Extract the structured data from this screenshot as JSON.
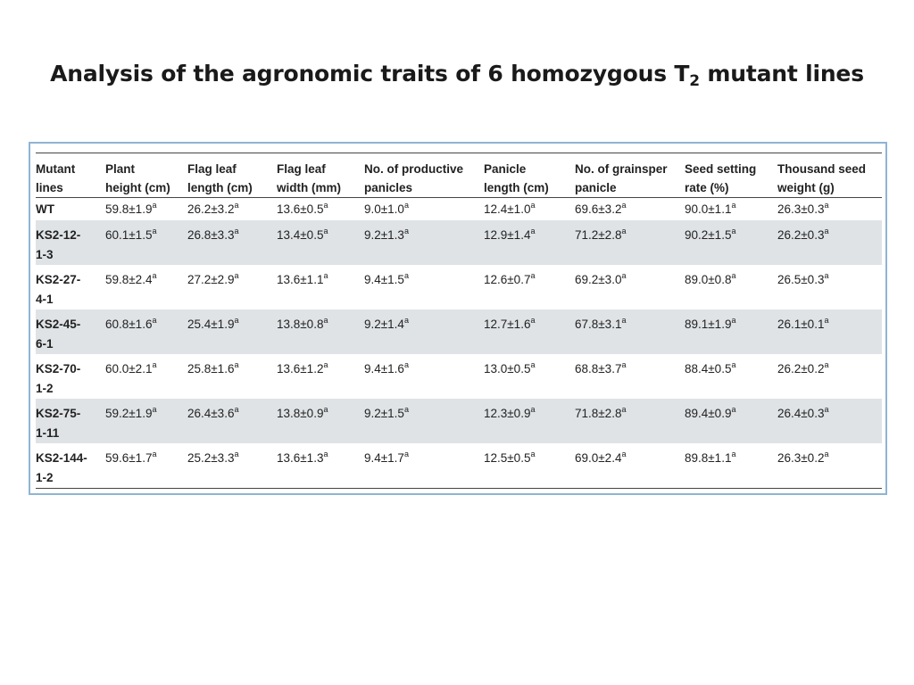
{
  "title": {
    "main": "Analysis of the agronomic traits of 6 homozygous T",
    "subscript": "2",
    "suffix": " mutant lines"
  },
  "table": {
    "headers": [
      [
        "Mutant",
        "lines"
      ],
      [
        "Plant",
        "height (cm)"
      ],
      [
        "Flag leaf",
        "length (cm)"
      ],
      [
        "Flag leaf",
        "width (mm)"
      ],
      [
        "No. of productive",
        "panicles"
      ],
      [
        "Panicle",
        "length (cm)"
      ],
      [
        "No. of grainsper",
        "panicle"
      ],
      [
        "Seed setting",
        "rate (%)"
      ],
      [
        "Thousand seed",
        "weight (g)"
      ]
    ],
    "superscript": "a",
    "rows": [
      {
        "line": [
          "WT"
        ],
        "values": [
          "59.8±1.9",
          "26.2±3.2",
          "13.6±0.5",
          "9.0±1.0",
          "12.4±1.0",
          "69.6±3.2",
          "90.0±1.1",
          "26.3±0.3"
        ]
      },
      {
        "line": [
          "KS2-12-",
          "1-3"
        ],
        "values": [
          "60.1±1.5",
          "26.8±3.3",
          "13.4±0.5",
          "9.2±1.3",
          "12.9±1.4",
          "71.2±2.8",
          "90.2±1.5",
          "26.2±0.3"
        ]
      },
      {
        "line": [
          "KS2-27-",
          "4-1"
        ],
        "values": [
          "59.8±2.4",
          "27.2±2.9",
          "13.6±1.1",
          "9.4±1.5",
          "12.6±0.7",
          "69.2±3.0",
          "89.0±0.8",
          "26.5±0.3"
        ]
      },
      {
        "line": [
          "KS2-45-",
          "6-1"
        ],
        "values": [
          "60.8±1.6",
          "25.4±1.9",
          "13.8±0.8",
          "9.2±1.4",
          "12.7±1.6",
          "67.8±3.1",
          "89.1±1.9",
          "26.1±0.1"
        ]
      },
      {
        "line": [
          "KS2-70-",
          "1-2"
        ],
        "values": [
          "60.0±2.1",
          "25.8±1.6",
          "13.6±1.2",
          "9.4±1.6",
          "13.0±0.5",
          "68.8±3.7",
          "88.4±0.5",
          "26.2±0.2"
        ]
      },
      {
        "line": [
          "KS2-75-",
          "1-11"
        ],
        "values": [
          "59.2±1.9",
          "26.4±3.6",
          "13.8±0.9",
          "9.2±1.5",
          "12.3±0.9",
          "71.8±2.8",
          "89.4±0.9",
          "26.4±0.3"
        ]
      },
      {
        "line": [
          "KS2-144-",
          "1-2"
        ],
        "values": [
          "59.6±1.7",
          "25.2±3.3",
          "13.6±1.3",
          "9.4±1.7",
          "12.5±0.5",
          "69.0±2.4",
          "89.8±1.1",
          "26.3±0.2"
        ]
      }
    ]
  }
}
